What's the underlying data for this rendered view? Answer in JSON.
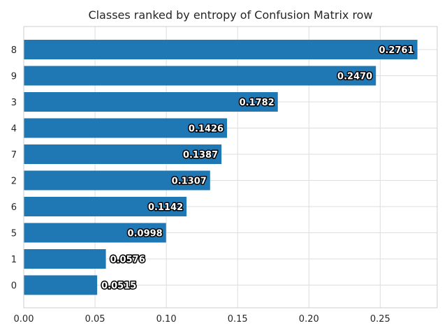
{
  "chart_data": {
    "type": "bar",
    "orientation": "horizontal",
    "title": "Classes ranked by entropy of Confusion Matrix row",
    "xlabel": "",
    "ylabel": "",
    "categories": [
      "8",
      "9",
      "3",
      "4",
      "7",
      "2",
      "6",
      "5",
      "1",
      "0"
    ],
    "values": [
      0.2761,
      0.247,
      0.1782,
      0.1426,
      0.1387,
      0.1307,
      0.1142,
      0.0998,
      0.0576,
      0.0515
    ],
    "value_labels": [
      "0.2761",
      "0.2470",
      "0.1782",
      "0.1426",
      "0.1387",
      "0.1307",
      "0.1142",
      "0.0998",
      "0.0576",
      "0.0515"
    ],
    "xlim": [
      0.0,
      0.29
    ],
    "xticks": [
      0.0,
      0.05,
      0.1,
      0.15,
      0.2,
      0.25
    ],
    "xtick_labels": [
      "0.00",
      "0.05",
      "0.10",
      "0.15",
      "0.20",
      "0.25"
    ],
    "grid": true,
    "bar_color": "#1f77b4"
  }
}
